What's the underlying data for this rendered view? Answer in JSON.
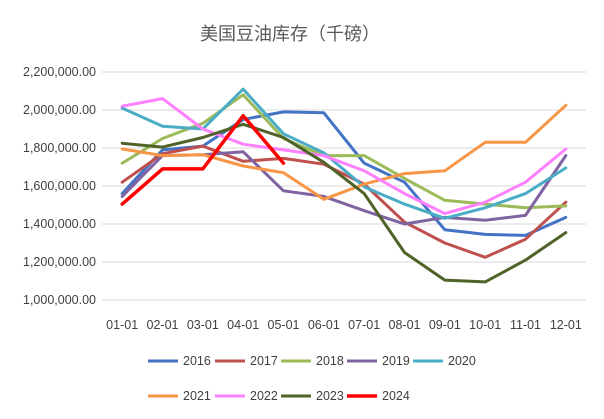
{
  "chart_data": {
    "type": "line",
    "title": "美国豆油库存（千磅）",
    "xlabel": "",
    "ylabel": "",
    "categories": [
      "01-01",
      "02-01",
      "03-01",
      "04-01",
      "05-01",
      "06-01",
      "07-01",
      "08-01",
      "09-01",
      "10-01",
      "11-01",
      "12-01"
    ],
    "ylim": [
      1000000,
      2200000
    ],
    "yticks": [
      1000000,
      1200000,
      1400000,
      1600000,
      1800000,
      2000000,
      2200000
    ],
    "ytick_labels": [
      "1,000,000.00",
      "1,200,000.00",
      "1,400,000.00",
      "1,600,000.00",
      "1,800,000.00",
      "2,000,000.00",
      "2,200,000.00"
    ],
    "grid": true,
    "legend_position": "bottom",
    "series": [
      {
        "name": "2016",
        "color": "#4472C4",
        "values": [
          1560000,
          1790000,
          1810000,
          1950000,
          1990000,
          1985000,
          1720000,
          1620000,
          1370000,
          1345000,
          1340000,
          1435000
        ]
      },
      {
        "name": "2017",
        "color": "#C0504D",
        "values": [
          1620000,
          1770000,
          1810000,
          1730000,
          1745000,
          1715000,
          1610000,
          1410000,
          1300000,
          1225000,
          1320000,
          1515000
        ]
      },
      {
        "name": "2018",
        "color": "#9BBB59",
        "values": [
          1720000,
          1850000,
          1930000,
          2080000,
          1850000,
          1760000,
          1760000,
          1640000,
          1525000,
          1505000,
          1485000,
          1495000
        ]
      },
      {
        "name": "2019",
        "color": "#8064A2",
        "values": [
          1545000,
          1760000,
          1765000,
          1780000,
          1575000,
          1545000,
          1470000,
          1400000,
          1435000,
          1420000,
          1445000,
          1760000
        ]
      },
      {
        "name": "2020",
        "color": "#4BACC6",
        "values": [
          2010000,
          1915000,
          1900000,
          2110000,
          1875000,
          1775000,
          1595000,
          1505000,
          1430000,
          1485000,
          1560000,
          1695000
        ]
      },
      {
        "name": "2021",
        "color": "#F79646",
        "values": [
          1795000,
          1760000,
          1765000,
          1705000,
          1670000,
          1530000,
          1610000,
          1665000,
          1680000,
          1830000,
          1830000,
          2025000
        ]
      },
      {
        "name": "2022",
        "color": "#FF80FF",
        "values": [
          2020000,
          2060000,
          1900000,
          1820000,
          1790000,
          1760000,
          1680000,
          1560000,
          1455000,
          1515000,
          1620000,
          1795000
        ]
      },
      {
        "name": "2023",
        "color": "#4F6228",
        "values": [
          1825000,
          1805000,
          1855000,
          1925000,
          1855000,
          1725000,
          1560000,
          1250000,
          1105000,
          1095000,
          1210000,
          1355000
        ]
      },
      {
        "name": "2024",
        "color": "#FF0000",
        "width": 3.5,
        "values": [
          1505000,
          1690000,
          1690000,
          1970000,
          1720000,
          null,
          null,
          null,
          null,
          null,
          null,
          null
        ]
      }
    ]
  }
}
